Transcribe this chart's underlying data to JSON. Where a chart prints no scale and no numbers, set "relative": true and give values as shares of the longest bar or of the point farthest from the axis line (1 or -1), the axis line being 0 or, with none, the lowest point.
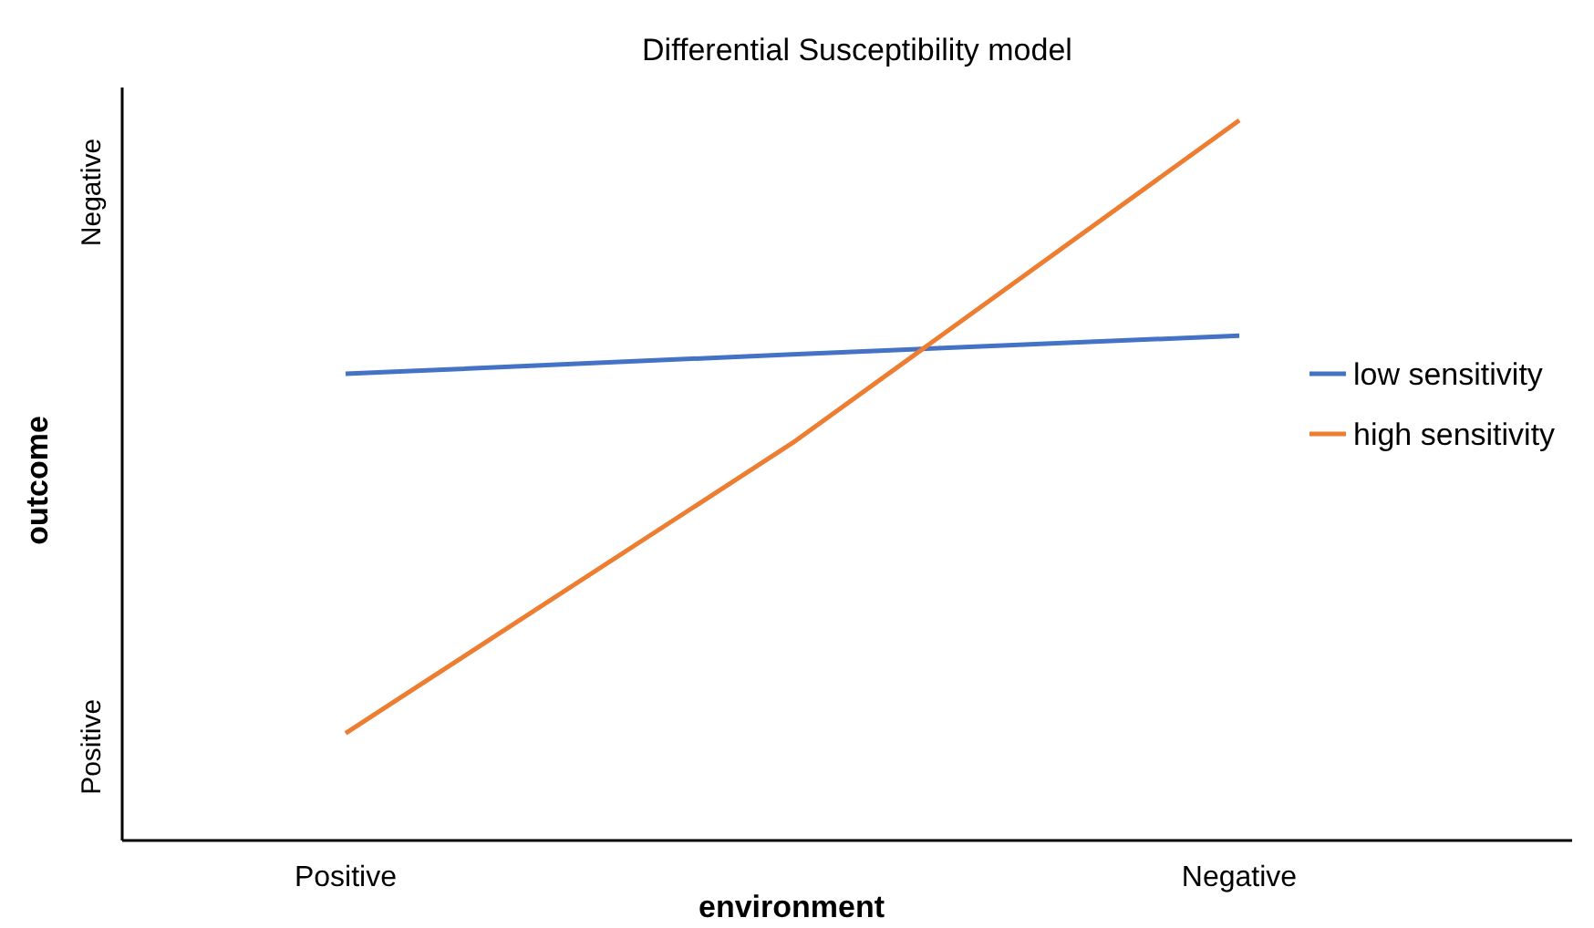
{
  "chart_data": {
    "type": "line",
    "title": "Differential Susceptibility model",
    "xlabel": "environment",
    "ylabel": "outcome",
    "categories": [
      "Positive",
      null,
      "Negative"
    ],
    "relative": true,
    "legend": "right",
    "marker": "none",
    "line_style": "solid",
    "series": [
      {
        "name": "low sensitivity",
        "color": "#4472c4",
        "values": [
          0.648,
          0.675,
          0.701
        ]
      },
      {
        "name": "high sensitivity",
        "color": "#ed7d31",
        "values": [
          0.149,
          0.552,
          1
        ]
      }
    ],
    "annotations": [
      "Positive",
      "Negative"
    ]
  }
}
